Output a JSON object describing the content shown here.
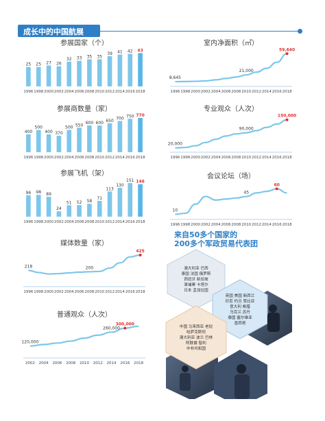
{
  "header": {
    "title": "成长中的中国航展"
  },
  "chart_data": [
    {
      "id": "countries",
      "type": "bar",
      "title": "参展国家（个）",
      "categories": [
        "1996",
        "1998",
        "2000",
        "2002",
        "2004",
        "2006",
        "2008",
        "2010",
        "2012",
        "2014",
        "2016",
        "2018"
      ],
      "values": [
        25,
        25,
        27,
        26,
        32,
        33,
        35,
        35,
        39,
        41,
        42,
        43
      ],
      "value_labels": [
        "25",
        "25",
        "27",
        "26",
        "32",
        "33",
        "35",
        "35",
        "39",
        "41",
        "42",
        "43"
      ],
      "highlight_last": true,
      "ylim": [
        0,
        46
      ]
    },
    {
      "id": "area",
      "type": "line",
      "title": "室内净面积（㎡）",
      "categories": [
        "1996",
        "1998",
        "2000",
        "2002",
        "2004",
        "2006",
        "2008",
        "2010",
        "2012",
        "2014",
        "2016",
        "2018"
      ],
      "values": [
        8645,
        8900,
        9300,
        10000,
        12000,
        14500,
        17000,
        21000,
        26000,
        33000,
        44000,
        59640
      ],
      "labels": [
        {
          "index": 0,
          "text": "8,645"
        },
        {
          "index": 7,
          "text": "21,000"
        },
        {
          "index": 11,
          "text": "59,640",
          "highlight": true
        }
      ],
      "ylim": [
        0,
        65000
      ]
    },
    {
      "id": "exhibitors",
      "type": "bar",
      "title": "参展商数量（家）",
      "categories": [
        "1996",
        "1998",
        "2000",
        "2002",
        "2004",
        "2006",
        "2008",
        "2010",
        "2012",
        "2014",
        "2016",
        "2018"
      ],
      "values": [
        400,
        500,
        400,
        370,
        500,
        550,
        600,
        600,
        650,
        700,
        750,
        770
      ],
      "value_labels": [
        "400",
        "500",
        "400",
        "370",
        "500",
        "550",
        "600",
        "600",
        "650",
        "700",
        "750",
        "770"
      ],
      "highlight_last": true,
      "ylim": [
        0,
        800
      ]
    },
    {
      "id": "professional",
      "type": "line",
      "title": "专业观众（人次）",
      "categories": [
        "1996",
        "1998",
        "2000",
        "2002",
        "2004",
        "2006",
        "2008",
        "2010",
        "2012",
        "2014",
        "2016",
        "2018"
      ],
      "values": [
        20000,
        22000,
        30000,
        45000,
        60000,
        75000,
        85000,
        90000,
        100000,
        115000,
        130000,
        150000
      ],
      "labels": [
        {
          "index": 0,
          "text": "20,000"
        },
        {
          "index": 7,
          "text": "90,000"
        },
        {
          "index": 11,
          "text": "150,000",
          "highlight": true
        }
      ],
      "ylim": [
        0,
        165000
      ]
    },
    {
      "id": "aircraft",
      "type": "bar",
      "title": "参展飞机（架）",
      "categories": [
        "1996",
        "1998",
        "2000",
        "2002",
        "2004",
        "2006",
        "2008",
        "2010",
        "2012",
        "2014",
        "2016",
        "2018"
      ],
      "values": [
        96,
        98,
        89,
        24,
        51,
        52,
        58,
        71,
        113,
        130,
        151,
        146
      ],
      "value_labels": [
        "96",
        "98",
        "89",
        "24",
        "51",
        "52",
        "58",
        "71",
        "113",
        "130",
        "151",
        "146"
      ],
      "highlight_last": true,
      "ylim": [
        0,
        160
      ]
    },
    {
      "id": "forums",
      "type": "line",
      "title": "会议论坛（场）",
      "categories": [
        "1996",
        "1998",
        "2000",
        "2002",
        "2004",
        "2006",
        "2008",
        "2010",
        "2012",
        "2014",
        "2016",
        "2018"
      ],
      "values": [
        10,
        12,
        30,
        45,
        38,
        40,
        42,
        45,
        52,
        55,
        60,
        52
      ],
      "labels": [
        {
          "index": 0,
          "text": "10"
        },
        {
          "index": 7,
          "text": "45"
        },
        {
          "index": 10,
          "text": "60",
          "highlight": true
        }
      ],
      "ylim": [
        0,
        70
      ]
    },
    {
      "id": "media",
      "type": "line",
      "title": "媒体数量（家）",
      "categories": [
        "1996",
        "1998",
        "2000",
        "2002",
        "2004",
        "2006",
        "2008",
        "2010",
        "2012",
        "2014",
        "2016",
        "2018"
      ],
      "values": [
        218,
        190,
        170,
        175,
        185,
        195,
        200,
        205,
        250,
        320,
        400,
        425
      ],
      "labels": [
        {
          "index": 0,
          "text": "218"
        },
        {
          "index": 6,
          "text": "200"
        },
        {
          "index": 11,
          "text": "425",
          "highlight": true
        }
      ],
      "ylim": [
        0,
        480
      ]
    },
    {
      "id": "public",
      "type": "line",
      "title": "普通观众（人次）",
      "categories": [
        "2002",
        "2004",
        "2006",
        "2008",
        "2010",
        "2012",
        "2014",
        "2016",
        "2018"
      ],
      "values": [
        120000,
        135000,
        150000,
        170000,
        200000,
        230000,
        260000,
        300000,
        320000
      ],
      "labels": [
        {
          "index": 0,
          "text": "120,000"
        },
        {
          "index": 6,
          "text": "260,000"
        },
        {
          "index": 7,
          "text": "300,000",
          "highlight": true
        }
      ],
      "ylim": [
        0,
        360000
      ]
    }
  ],
  "delegation": {
    "line1": "来自50多个国家的",
    "line2": "200多个军政贸易代表团",
    "hex1": [
      "澳大利亚 巴西",
      "泰国 法国 俄罗斯",
      "西班牙 新加坡",
      "柬埔寨 卡塔尔",
      "日本 孟加拉国"
    ],
    "hex2": [
      "英国 美国 新西兰",
      "印尼 约旦 赞比亚",
      "意大利 希腊",
      "乌克兰 苏丹",
      "泰国 塞尔维亚",
      "墨西哥"
    ],
    "hex3": [
      "中国 马来西亚 老挝",
      "哈萨克斯坦",
      "澳大利亚 波兰 巴林",
      "阿联酋 智利",
      "中非共和国"
    ]
  },
  "colors": {
    "accent": "#2f7fc6",
    "bar": "#7ec6ea",
    "highlight": "#e03030"
  }
}
